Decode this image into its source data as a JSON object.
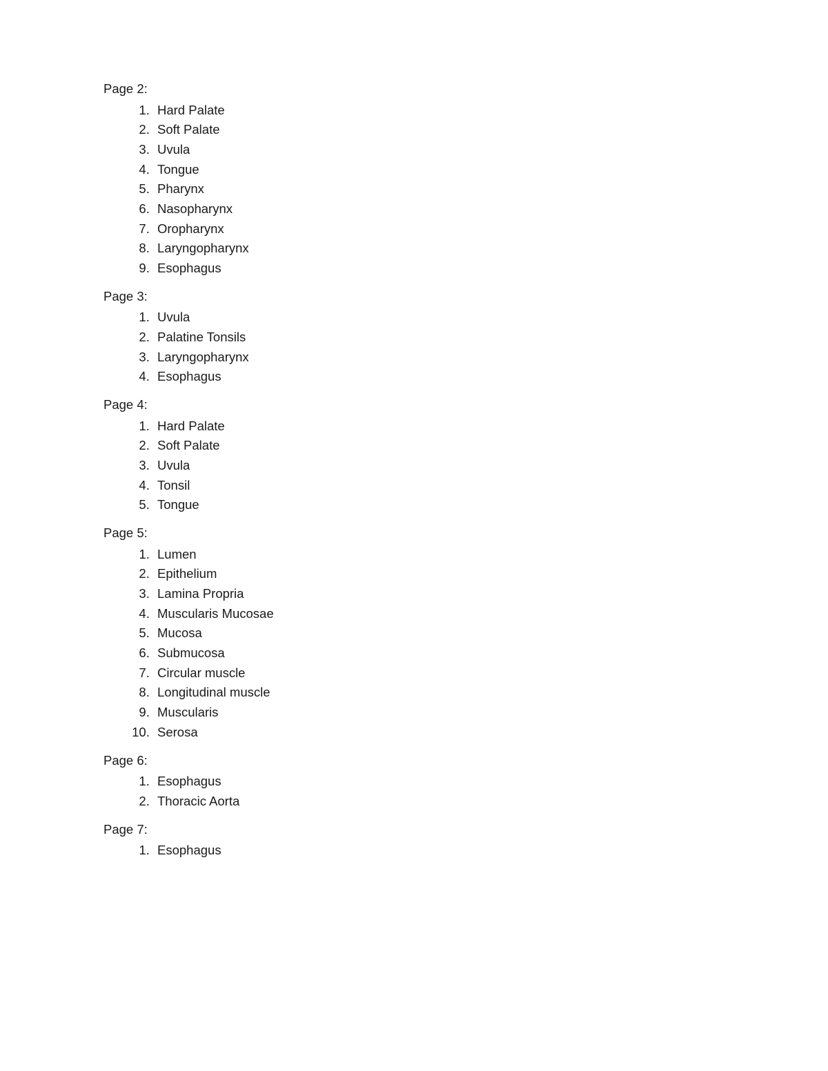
{
  "sections": [
    {
      "title": "Page 2:",
      "items": [
        "Hard Palate",
        "Soft Palate",
        "Uvula",
        "Tongue",
        "Pharynx",
        "Nasopharynx",
        "Oropharynx",
        "Laryngopharynx",
        "Esophagus"
      ]
    },
    {
      "title": "Page 3:",
      "items": [
        " Uvula",
        "Palatine Tonsils",
        "Laryngopharynx",
        "Esophagus"
      ]
    },
    {
      "title": "Page 4:",
      "items": [
        "Hard Palate",
        "Soft Palate",
        "Uvula",
        "Tonsil",
        "Tongue"
      ]
    },
    {
      "title": "Page 5:",
      "items": [
        "Lumen",
        "Epithelium",
        "Lamina Propria",
        "Muscularis Mucosae",
        "Mucosa",
        "Submucosa",
        "Circular muscle",
        "Longitudinal muscle",
        "Muscularis",
        "Serosa"
      ]
    },
    {
      "title": "Page 6:",
      "items": [
        "Esophagus",
        "Thoracic Aorta"
      ]
    },
    {
      "title": "Page 7:",
      "items": [
        "Esophagus"
      ]
    }
  ]
}
